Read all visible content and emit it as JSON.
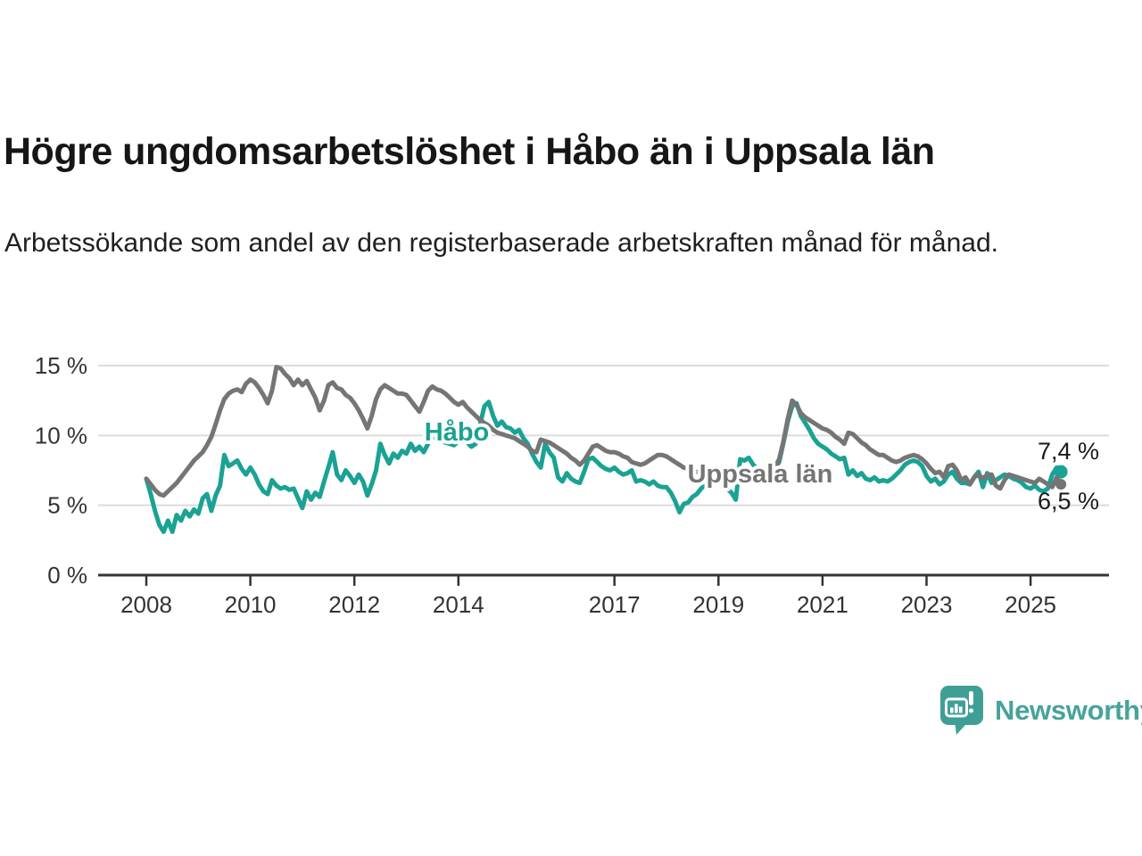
{
  "header": {
    "title": "Högre ungdomsarbetslöshet i Håbo än i Uppsala län",
    "subtitle": "Arbetssökande som andel av den registerbaserade arbetskraften månad för månad."
  },
  "chart_data": {
    "type": "line",
    "x_start_year": 2008,
    "x_step_months": 1,
    "x_axis_ticks": [
      2008,
      2010,
      2012,
      2014,
      2017,
      2019,
      2021,
      2023,
      2025
    ],
    "y_ticks": [
      {
        "value": 0,
        "label": "0 %"
      },
      {
        "value": 5,
        "label": "5 %"
      },
      {
        "value": 10,
        "label": "10 %"
      },
      {
        "value": 15,
        "label": "15 %"
      }
    ],
    "ylim": [
      0,
      16.5
    ],
    "grid": true,
    "grid_color": "#dcdcdc",
    "axis_color": "#333333",
    "legend_position": "inline-labels",
    "series": [
      {
        "name": "Håbo",
        "slug": "habo",
        "color": "#1aa294",
        "end_label": "7,4 %",
        "end_value": 7.4,
        "values": [
          6.9,
          5.8,
          4.6,
          3.6,
          3.1,
          3.9,
          3.1,
          4.3,
          3.9,
          4.6,
          4.2,
          4.7,
          4.4,
          5.5,
          5.8,
          4.6,
          5.7,
          6.4,
          8.6,
          7.8,
          8.0,
          8.2,
          7.6,
          7.2,
          7.7,
          7.2,
          6.5,
          6.0,
          5.8,
          6.8,
          6.4,
          6.2,
          6.3,
          6.1,
          6.2,
          5.5,
          4.8,
          6.0,
          5.4,
          5.9,
          5.6,
          6.7,
          7.7,
          8.8,
          7.2,
          6.8,
          7.5,
          7.1,
          6.6,
          7.2,
          6.7,
          5.7,
          6.5,
          7.5,
          9.4,
          8.6,
          8.0,
          8.7,
          8.4,
          8.9,
          8.7,
          9.4,
          8.9,
          9.2,
          8.8,
          9.4,
          9.9,
          9.8,
          9.6,
          9.5,
          9.4,
          9.3,
          9.6,
          9.8,
          9.5,
          9.2,
          9.4,
          10.8,
          12.1,
          12.4,
          11.4,
          10.7,
          11.0,
          10.6,
          10.5,
          10.2,
          10.4,
          9.8,
          9.4,
          8.7,
          8.1,
          7.7,
          9.4,
          8.8,
          8.4,
          7.0,
          6.7,
          7.3,
          6.9,
          6.7,
          6.6,
          7.4,
          8.3,
          8.4,
          8.1,
          7.8,
          7.6,
          7.5,
          7.7,
          7.4,
          7.2,
          7.3,
          7.5,
          6.7,
          6.8,
          6.7,
          6.5,
          6.7,
          6.4,
          6.3,
          6.3,
          5.9,
          5.3,
          4.5,
          5.1,
          5.2,
          5.6,
          5.8,
          6.2,
          6.5,
          6.8,
          7.0,
          6.8,
          6.5,
          6.2,
          5.9,
          5.4,
          8.3,
          8.2,
          8.4,
          7.9,
          7.6,
          7.4,
          7.3,
          7.4,
          7.6,
          8.1,
          9.5,
          11.0,
          12.1,
          12.3,
          11.4,
          10.9,
          10.4,
          9.8,
          9.4,
          9.2,
          9.0,
          8.7,
          8.5,
          8.3,
          8.4,
          7.2,
          7.5,
          7.1,
          7.3,
          6.9,
          6.8,
          7.0,
          6.7,
          6.8,
          6.7,
          6.9,
          7.2,
          7.5,
          7.9,
          8.1,
          8.2,
          8.1,
          7.8,
          7.1,
          6.7,
          6.9,
          6.5,
          6.7,
          7.2,
          7.4,
          6.9,
          6.6,
          6.6,
          6.5,
          7.0,
          7.4,
          6.3,
          7.3,
          6.6,
          6.8,
          7.0,
          7.2,
          7.1,
          6.9,
          6.8,
          6.6,
          6.3,
          6.2,
          6.4,
          6.1,
          6.0,
          6.2,
          7.2,
          7.7,
          7.4
        ]
      },
      {
        "name": "Uppsala län",
        "slug": "uppsala-lan",
        "color": "#757575",
        "end_label": "6,5 %",
        "end_value": 6.5,
        "values": [
          6.9,
          6.5,
          6.1,
          5.8,
          5.7,
          6.0,
          6.3,
          6.6,
          7.0,
          7.4,
          7.8,
          8.2,
          8.5,
          8.8,
          9.3,
          9.9,
          10.8,
          11.8,
          12.6,
          13.0,
          13.2,
          13.3,
          13.1,
          13.7,
          14.0,
          13.8,
          13.4,
          12.9,
          12.3,
          13.2,
          14.9,
          14.8,
          14.4,
          14.1,
          13.6,
          14.0,
          13.6,
          13.9,
          13.3,
          12.7,
          11.8,
          12.5,
          13.6,
          13.8,
          13.4,
          13.3,
          12.9,
          12.7,
          12.3,
          11.8,
          11.2,
          10.5,
          11.4,
          12.6,
          13.3,
          13.6,
          13.4,
          13.2,
          13.0,
          13.0,
          12.9,
          12.5,
          12.1,
          11.7,
          12.4,
          13.2,
          13.5,
          13.3,
          13.2,
          13.0,
          12.7,
          12.4,
          12.2,
          12.4,
          12.0,
          11.7,
          11.4,
          11.1,
          10.9,
          10.7,
          10.4,
          10.2,
          10.1,
          10.0,
          9.9,
          9.8,
          9.6,
          9.4,
          9.2,
          8.9,
          8.8,
          9.7,
          9.6,
          9.5,
          9.3,
          9.1,
          8.9,
          8.7,
          8.4,
          8.2,
          7.9,
          8.2,
          8.7,
          9.2,
          9.3,
          9.1,
          8.9,
          8.8,
          8.8,
          8.7,
          8.5,
          8.4,
          8.1,
          8.0,
          7.9,
          8.0,
          8.2,
          8.4,
          8.6,
          8.6,
          8.5,
          8.3,
          8.1,
          7.9,
          7.7,
          7.6,
          7.5,
          7.4,
          7.3,
          7.2,
          7.2,
          7.1,
          7.0,
          7.0,
          6.9,
          6.9,
          7.0,
          7.2,
          7.3,
          7.3,
          7.2,
          7.2,
          7.3,
          7.4,
          7.5,
          7.7,
          8.3,
          9.6,
          11.2,
          12.5,
          12.2,
          11.6,
          11.3,
          11.1,
          10.9,
          10.7,
          10.5,
          10.4,
          10.2,
          9.9,
          9.7,
          9.4,
          10.2,
          10.1,
          9.8,
          9.5,
          9.3,
          9.0,
          8.8,
          8.6,
          8.6,
          8.4,
          8.2,
          8.1,
          8.2,
          8.4,
          8.5,
          8.6,
          8.5,
          8.3,
          8.0,
          7.6,
          7.3,
          7.4,
          7.0,
          7.8,
          7.9,
          7.5,
          6.8,
          7.0,
          6.5,
          7.0,
          7.2,
          6.9,
          7.2,
          7.2,
          6.4,
          6.2,
          6.8,
          7.2,
          7.1,
          7.0,
          6.9,
          6.8,
          6.7,
          6.6,
          6.9,
          6.7,
          6.5,
          6.3,
          7.0,
          6.5
        ]
      }
    ]
  },
  "footer": {
    "brand": "Newsworthy",
    "brand_color": "#46a39b"
  }
}
